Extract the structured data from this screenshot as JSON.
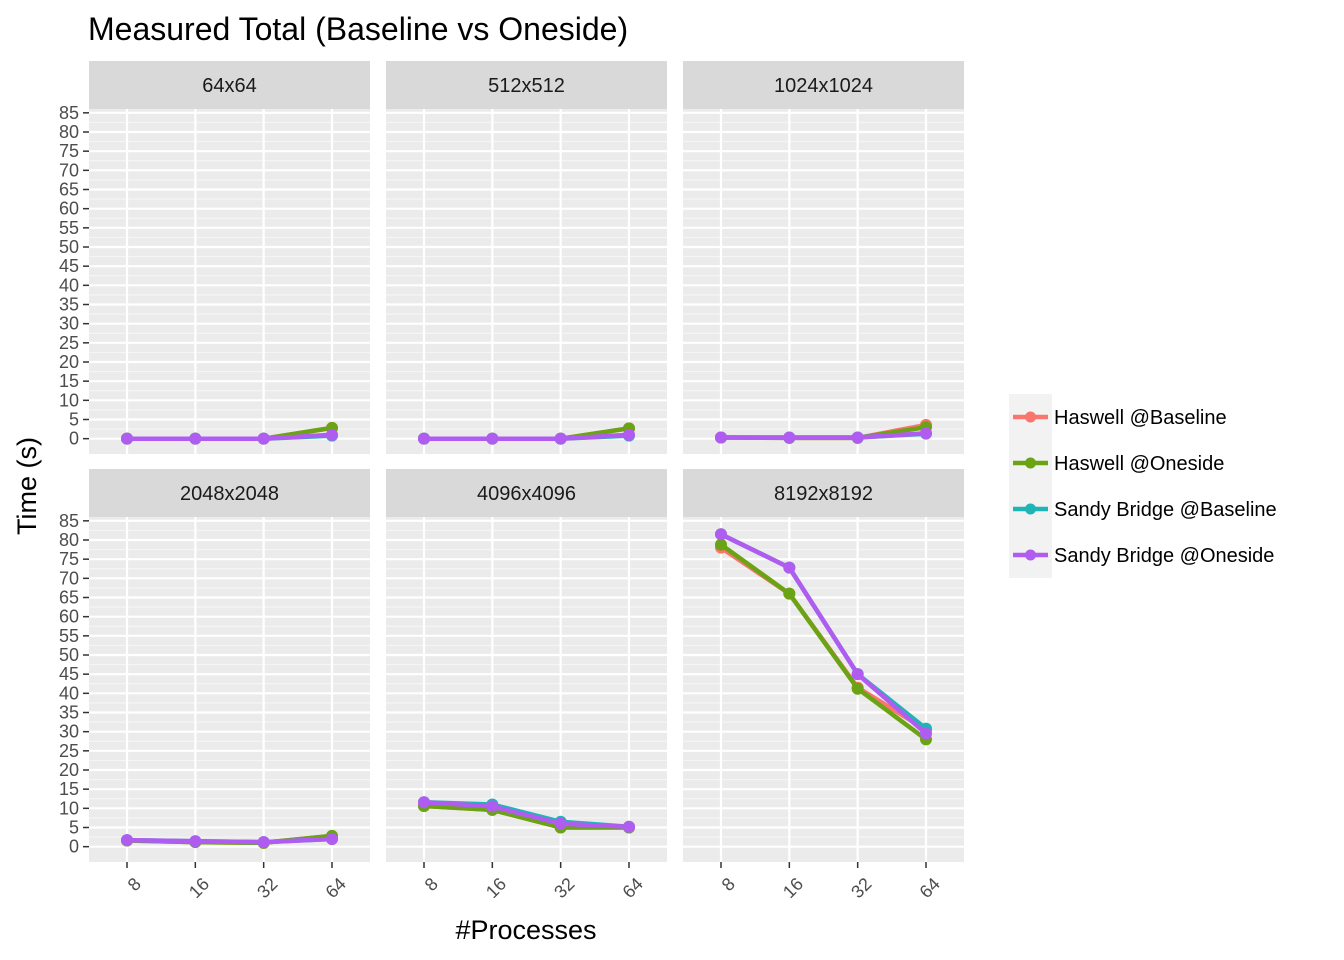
{
  "chart_data": {
    "type": "line",
    "title": "Measured Total (Baseline vs Oneside)",
    "xlabel": "#Processes",
    "ylabel": "Time (s)",
    "x": [
      "8",
      "16",
      "32",
      "64"
    ],
    "y_ticks": [
      "0",
      "5",
      "10",
      "15",
      "20",
      "25",
      "30",
      "35",
      "40",
      "45",
      "50",
      "55",
      "60",
      "65",
      "70",
      "75",
      "80",
      "85"
    ],
    "ylim": [
      -4,
      86
    ],
    "grid": true,
    "legend_position": "right",
    "series_info": [
      {
        "name": "Haswell @Baseline",
        "color": "#f8766d"
      },
      {
        "name": "Haswell @Oneside",
        "color": "#6aa313"
      },
      {
        "name": "Sandy Bridge @Baseline",
        "color": "#1fb5b7"
      },
      {
        "name": "Sandy Bridge @Oneside",
        "color": "#b15cf0"
      }
    ],
    "panels": [
      {
        "label": "64x64",
        "series": [
          {
            "name": "Haswell @Baseline",
            "values": [
              0,
              0,
              0,
              2.8
            ]
          },
          {
            "name": "Haswell @Oneside",
            "values": [
              0,
              0,
              0,
              2.8
            ]
          },
          {
            "name": "Sandy Bridge @Baseline",
            "values": [
              0,
              0,
              0,
              0.8
            ]
          },
          {
            "name": "Sandy Bridge @Oneside",
            "values": [
              0,
              0,
              0,
              1.0
            ]
          }
        ]
      },
      {
        "label": "512x512",
        "series": [
          {
            "name": "Haswell @Baseline",
            "values": [
              0,
              0,
              0,
              2.7
            ]
          },
          {
            "name": "Haswell @Oneside",
            "values": [
              0,
              0,
              0,
              2.7
            ]
          },
          {
            "name": "Sandy Bridge @Baseline",
            "values": [
              0,
              0,
              0,
              0.8
            ]
          },
          {
            "name": "Sandy Bridge @Oneside",
            "values": [
              0,
              0,
              0,
              1.0
            ]
          }
        ]
      },
      {
        "label": "1024x1024",
        "series": [
          {
            "name": "Haswell @Baseline",
            "values": [
              0.3,
              0.2,
              0.2,
              3.6
            ]
          },
          {
            "name": "Haswell @Oneside",
            "values": [
              0.3,
              0.2,
              0.2,
              3.0
            ]
          },
          {
            "name": "Sandy Bridge @Baseline",
            "values": [
              0.3,
              0.3,
              0.3,
              1.3
            ]
          },
          {
            "name": "Sandy Bridge @Oneside",
            "values": [
              0.3,
              0.3,
              0.3,
              1.4
            ]
          }
        ]
      },
      {
        "label": "2048x2048",
        "series": [
          {
            "name": "Haswell @Baseline",
            "values": [
              1.6,
              1.2,
              1.0,
              2.8
            ]
          },
          {
            "name": "Haswell @Oneside",
            "values": [
              1.6,
              1.2,
              1.0,
              2.8
            ]
          },
          {
            "name": "Sandy Bridge @Baseline",
            "values": [
              1.7,
              1.4,
              1.2,
              2.0
            ]
          },
          {
            "name": "Sandy Bridge @Oneside",
            "values": [
              1.7,
              1.4,
              1.2,
              2.0
            ]
          }
        ]
      },
      {
        "label": "4096x4096",
        "series": [
          {
            "name": "Haswell @Baseline",
            "values": [
              10.6,
              9.6,
              5.0,
              5.0
            ]
          },
          {
            "name": "Haswell @Oneside",
            "values": [
              10.6,
              9.6,
              5.0,
              5.0
            ]
          },
          {
            "name": "Sandy Bridge @Baseline",
            "values": [
              11.6,
              11.0,
              6.5,
              5.2
            ]
          },
          {
            "name": "Sandy Bridge @Oneside",
            "values": [
              11.6,
              10.5,
              6.0,
              5.2
            ]
          }
        ]
      },
      {
        "label": "8192x8192",
        "series": [
          {
            "name": "Haswell @Baseline",
            "values": [
              78.0,
              66.0,
              41.5,
              30.5
            ]
          },
          {
            "name": "Haswell @Oneside",
            "values": [
              78.8,
              66.0,
              41.2,
              28.0
            ]
          },
          {
            "name": "Sandy Bridge @Baseline",
            "values": [
              81.5,
              72.8,
              45.0,
              30.8
            ]
          },
          {
            "name": "Sandy Bridge @Oneside",
            "values": [
              81.5,
              72.8,
              45.0,
              29.5
            ]
          }
        ]
      }
    ]
  }
}
